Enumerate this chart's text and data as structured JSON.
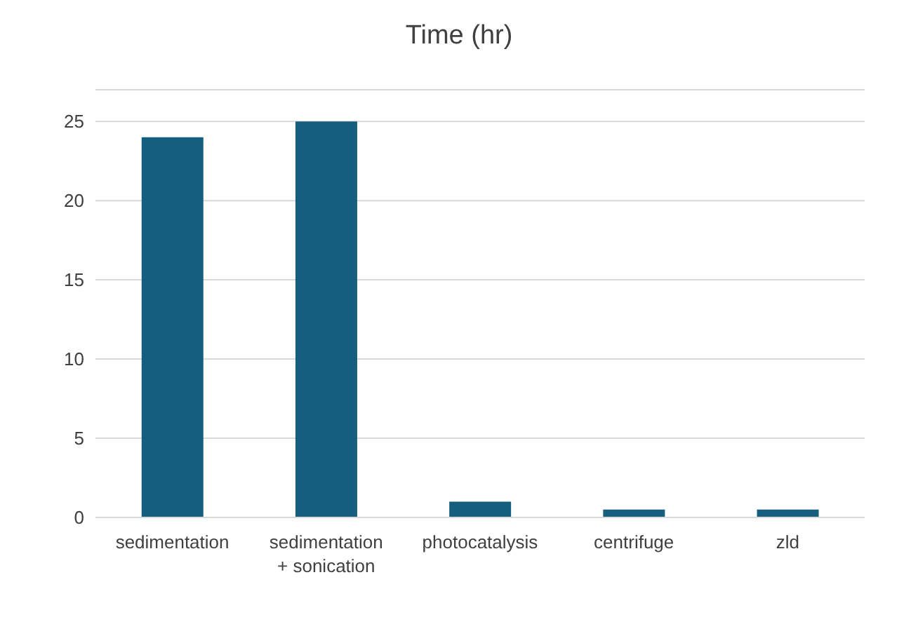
{
  "chart_data": {
    "type": "bar",
    "title": "Time (hr)",
    "categories": [
      "sedimentation",
      "sedimentation + sonication",
      "photocatalysis",
      "centrifuge",
      "zld"
    ],
    "values": [
      24,
      25,
      1,
      0.5,
      0.5
    ],
    "color": "#155e7d",
    "ylim": [
      0,
      27
    ],
    "yticks": [
      0,
      5,
      10,
      15,
      20,
      25
    ],
    "grid": "y"
  }
}
